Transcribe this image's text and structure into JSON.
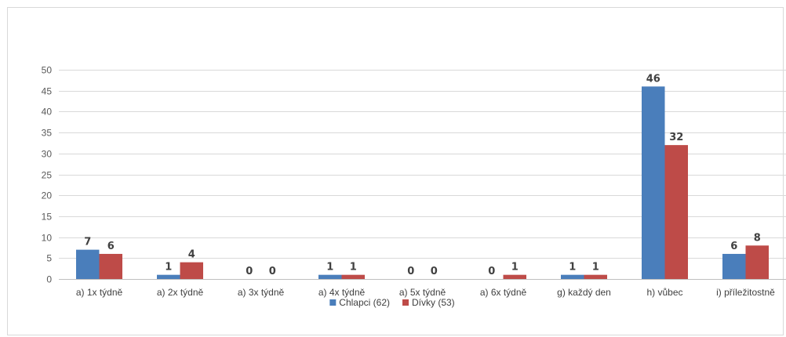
{
  "chart_data": {
    "type": "bar",
    "title": "",
    "xlabel": "",
    "ylabel": "",
    "categories": [
      "a) 1x týdně",
      "a) 2x týdně",
      "a) 3x týdně",
      "a) 4x týdně",
      "a) 5x týdně",
      "a) 6x týdně",
      "g) každý den",
      "h) vůbec",
      "i) příležitostně"
    ],
    "series": [
      {
        "name": "Chlapci (62)",
        "color": "#4a7ebb",
        "values": [
          7,
          1,
          0,
          1,
          0,
          0,
          1,
          46,
          6
        ]
      },
      {
        "name": "Dívky (53)",
        "color": "#be4b48",
        "values": [
          6,
          4,
          0,
          1,
          0,
          1,
          1,
          32,
          8
        ]
      }
    ],
    "ylim": [
      0,
      50
    ],
    "yticks": [
      0,
      5,
      10,
      15,
      20,
      25,
      30,
      35,
      40,
      45,
      50
    ],
    "grid": true,
    "legend_position": "bottom",
    "data_labels": true
  }
}
